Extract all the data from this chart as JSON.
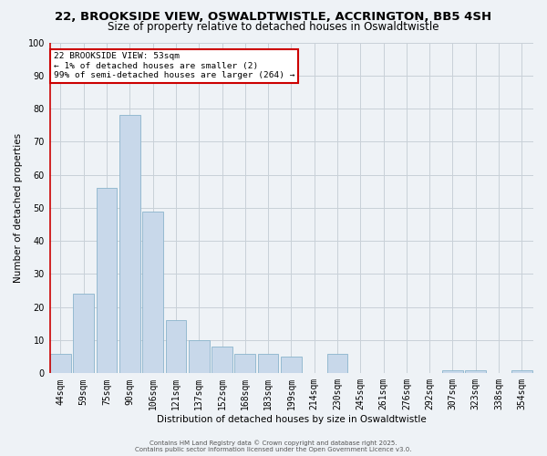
{
  "title": "22, BROOKSIDE VIEW, OSWALDTWISTLE, ACCRINGTON, BB5 4SH",
  "subtitle": "Size of property relative to detached houses in Oswaldtwistle",
  "xlabel": "Distribution of detached houses by size in Oswaldtwistle",
  "ylabel": "Number of detached properties",
  "bar_color": "#c8d8ea",
  "bar_edge_color": "#8ab4cc",
  "categories": [
    "44sqm",
    "59sqm",
    "75sqm",
    "90sqm",
    "106sqm",
    "121sqm",
    "137sqm",
    "152sqm",
    "168sqm",
    "183sqm",
    "199sqm",
    "214sqm",
    "230sqm",
    "245sqm",
    "261sqm",
    "276sqm",
    "292sqm",
    "307sqm",
    "323sqm",
    "338sqm",
    "354sqm"
  ],
  "values": [
    6,
    24,
    56,
    78,
    49,
    16,
    10,
    8,
    6,
    6,
    5,
    0,
    6,
    0,
    0,
    0,
    0,
    1,
    1,
    0,
    1
  ],
  "ylim": [
    0,
    100
  ],
  "yticks": [
    0,
    10,
    20,
    30,
    40,
    50,
    60,
    70,
    80,
    90,
    100
  ],
  "annotation_line1": "22 BROOKSIDE VIEW: 53sqm",
  "annotation_line2": "← 1% of detached houses are smaller (2)",
  "annotation_line3": "99% of semi-detached houses are larger (264) →",
  "annotation_box_color": "#ffffff",
  "annotation_border_color": "#cc0000",
  "footer1": "Contains HM Land Registry data © Crown copyright and database right 2025.",
  "footer2": "Contains public sector information licensed under the Open Government Licence v3.0.",
  "background_color": "#eef2f6",
  "grid_color": "#c8d0d8",
  "red_line_color": "#cc0000",
  "title_fontsize": 9.5,
  "subtitle_fontsize": 8.5,
  "axis_fontsize": 7.5,
  "tick_fontsize": 7,
  "footer_fontsize": 5
}
